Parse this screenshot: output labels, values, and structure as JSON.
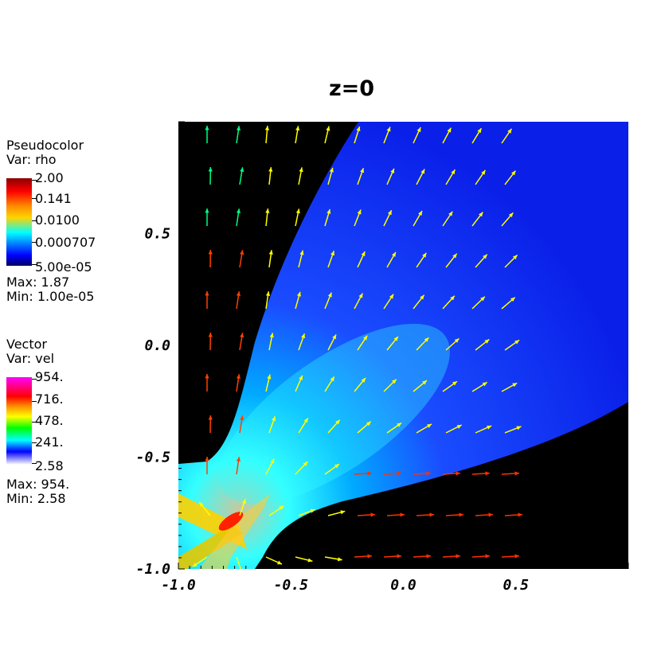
{
  "title": "z=0",
  "pseudocolor": {
    "header": "Pseudocolor",
    "var": "Var: rho",
    "labels": [
      "2.00",
      "0.141",
      "0.0100",
      "0.000707",
      "5.00e-05"
    ],
    "max": "Max:  1.87",
    "min": "Min:  1.00e-05",
    "colors": [
      "#8b0000",
      "#ff0000",
      "#ffd400",
      "#00ffff",
      "#0000ff",
      "#000060"
    ]
  },
  "vector": {
    "header": "Vector",
    "var": "Var: vel",
    "labels": [
      "954.",
      "716.",
      "478.",
      "241.",
      "2.58"
    ],
    "max": "Max:  954.",
    "min": "Min:  2.58",
    "colors": [
      "#ff00ff",
      "#ff0000",
      "#ffff00",
      "#00ff00",
      "#00ffff",
      "#0000ff",
      "#ffffff"
    ]
  },
  "chart_data": {
    "type": "heatmap",
    "title": "z=0",
    "xlabel": "",
    "ylabel": "",
    "xlim": [
      -1.0,
      1.0
    ],
    "ylim": [
      -1.0,
      1.0
    ],
    "xticks": [
      "-1.0",
      "-0.5",
      "0.0",
      "0.5"
    ],
    "yticks": [
      "-1.0",
      "-0.5",
      "0.0",
      "0.5"
    ],
    "background": "#000000",
    "field": "rho (log color scale, 5.00e-05 to 2.00)",
    "vectors": "vel (colored by magnitude, 2.58 to 954.)",
    "jet_source": [
      -0.78,
      -0.78
    ],
    "jet_direction": "upper-right cone",
    "grid": false
  }
}
